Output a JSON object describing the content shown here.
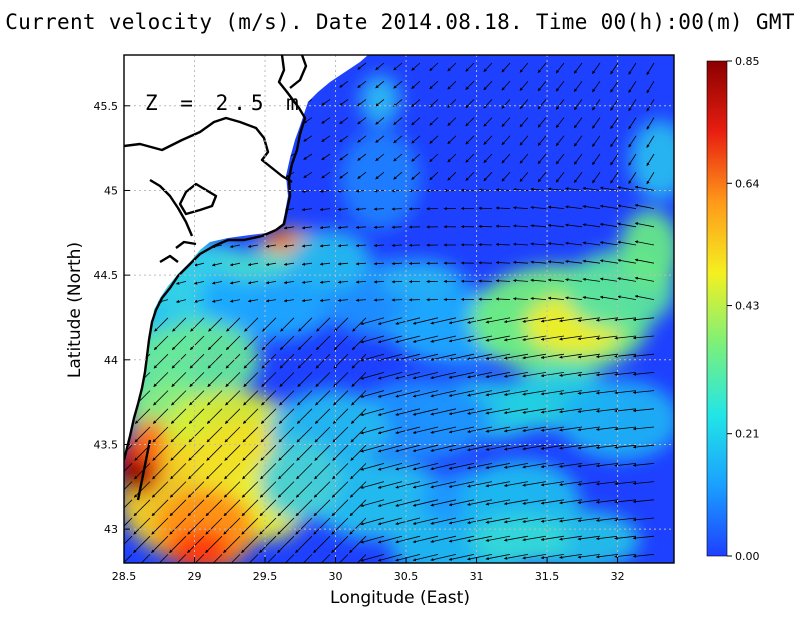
{
  "title": "Current velocity (m/s). Date 2014.08.18. Time 00(h):00(m) GMT",
  "depth_label": "Z = 2.5 m",
  "colors": {
    "land": "#ffffff",
    "coast": "#000000",
    "grid": "#bcbcbc"
  },
  "chart_data": {
    "type": "heatmap",
    "xlabel": "Longitude (East)",
    "ylabel": "Latitude (North)",
    "xlim": [
      28.5,
      32.4
    ],
    "ylim": [
      42.8,
      45.8
    ],
    "xticks": [
      "28.5",
      "29",
      "29.5",
      "30",
      "30.5",
      "31",
      "31.5",
      "32"
    ],
    "yticks": [
      "43",
      "43.5",
      "44",
      "44.5",
      "45",
      "45.5"
    ],
    "grid": true,
    "colorbar": {
      "ticks": [
        "0.85",
        "0.64",
        "0.43",
        "0.21",
        "0.00"
      ],
      "min": 0.0,
      "max": 0.85,
      "colors": [
        "#1e40ff",
        "#1aa0ff",
        "#22e6e6",
        "#7cf07a",
        "#f4f020",
        "#ff9a1a",
        "#e81e10",
        "#8a0000"
      ]
    }
  }
}
